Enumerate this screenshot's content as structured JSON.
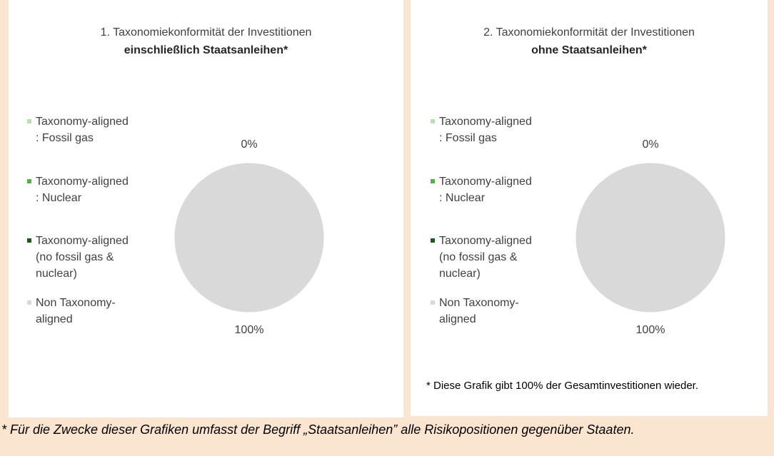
{
  "chart_data": [
    {
      "type": "pie",
      "title": "1. Taxonomiekonformität der Investitionen",
      "subtitle": "einschließlich Staatsanleihen*",
      "categories": [
        "Taxonomy-aligned : Fossil gas",
        "Taxonomy-aligned : Nuclear",
        "Taxonomy-aligned (no fossil gas & nuclear)",
        "Non Taxonomy-aligned"
      ],
      "values": [
        0,
        0,
        0,
        100
      ],
      "value_labels": [
        null,
        null,
        "0%",
        "100%"
      ],
      "colors": [
        "#b9deb0",
        "#5aae47",
        "#1f5a1c",
        "#d9d9d9"
      ],
      "legend": "left"
    },
    {
      "type": "pie",
      "title": "2. Taxonomiekonformität der Investitionen",
      "subtitle": "ohne Staatsanleihen*",
      "categories": [
        "Taxonomy-aligned : Fossil gas",
        "Taxonomy-aligned : Nuclear",
        "Taxonomy-aligned (no fossil gas & nuclear)",
        "Non Taxonomy-aligned"
      ],
      "values": [
        0,
        0,
        0,
        100
      ],
      "value_labels": [
        null,
        null,
        "0%",
        "100%"
      ],
      "colors": [
        "#b9deb0",
        "#5aae47",
        "#1f5a1c",
        "#d9d9d9"
      ],
      "legend": "left",
      "note": "* Diese Grafik gibt 100% der Gesamtinvestitionen wieder."
    }
  ],
  "footnote": "* Für die Zwecke dieser Grafiken umfasst der Begriff „Staatsanleihen” alle Risikopositionen gegenüber Staaten."
}
